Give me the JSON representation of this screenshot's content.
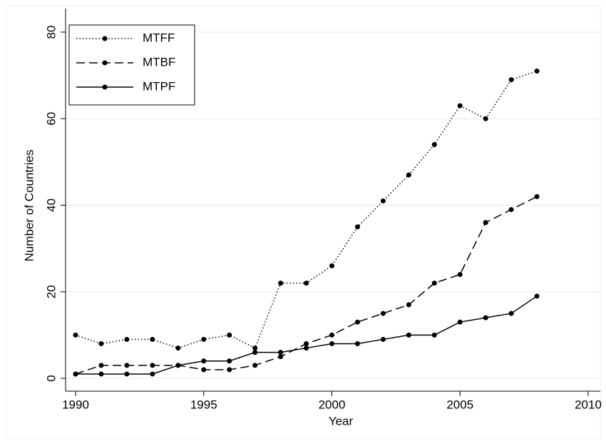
{
  "chart_data": {
    "type": "line",
    "x_label": "Year",
    "y_label": "Number of Countries",
    "x": [
      1990,
      1991,
      1992,
      1993,
      1994,
      1995,
      1996,
      1997,
      1998,
      1999,
      2000,
      2001,
      2002,
      2003,
      2004,
      2005,
      2006,
      2007,
      2008
    ],
    "series": [
      {
        "name": "MTFF",
        "color": "#000000",
        "dash": "dotted",
        "values": [
          10,
          8,
          9,
          9,
          7,
          9,
          10,
          7,
          22,
          22,
          26,
          35,
          41,
          47,
          54,
          63,
          60,
          69,
          71
        ]
      },
      {
        "name": "MTBF",
        "color": "#000000",
        "dash": "dashed",
        "values": [
          1,
          3,
          3,
          3,
          3,
          2,
          2,
          3,
          5,
          8,
          10,
          13,
          15,
          17,
          22,
          24,
          36,
          39,
          42
        ]
      },
      {
        "name": "MTPF",
        "color": "#000000",
        "dash": "solid",
        "values": [
          1,
          1,
          1,
          1,
          3,
          4,
          4,
          6,
          6,
          7,
          8,
          8,
          9,
          10,
          10,
          13,
          14,
          15,
          19
        ]
      }
    ],
    "xlim": [
      1990,
      2010
    ],
    "xticks": [
      1990,
      1995,
      2000,
      2005,
      2010
    ],
    "ylim": [
      0,
      80
    ],
    "yticks": [
      0,
      20,
      40,
      60,
      80
    ],
    "grid": true,
    "legend": "top-left"
  }
}
